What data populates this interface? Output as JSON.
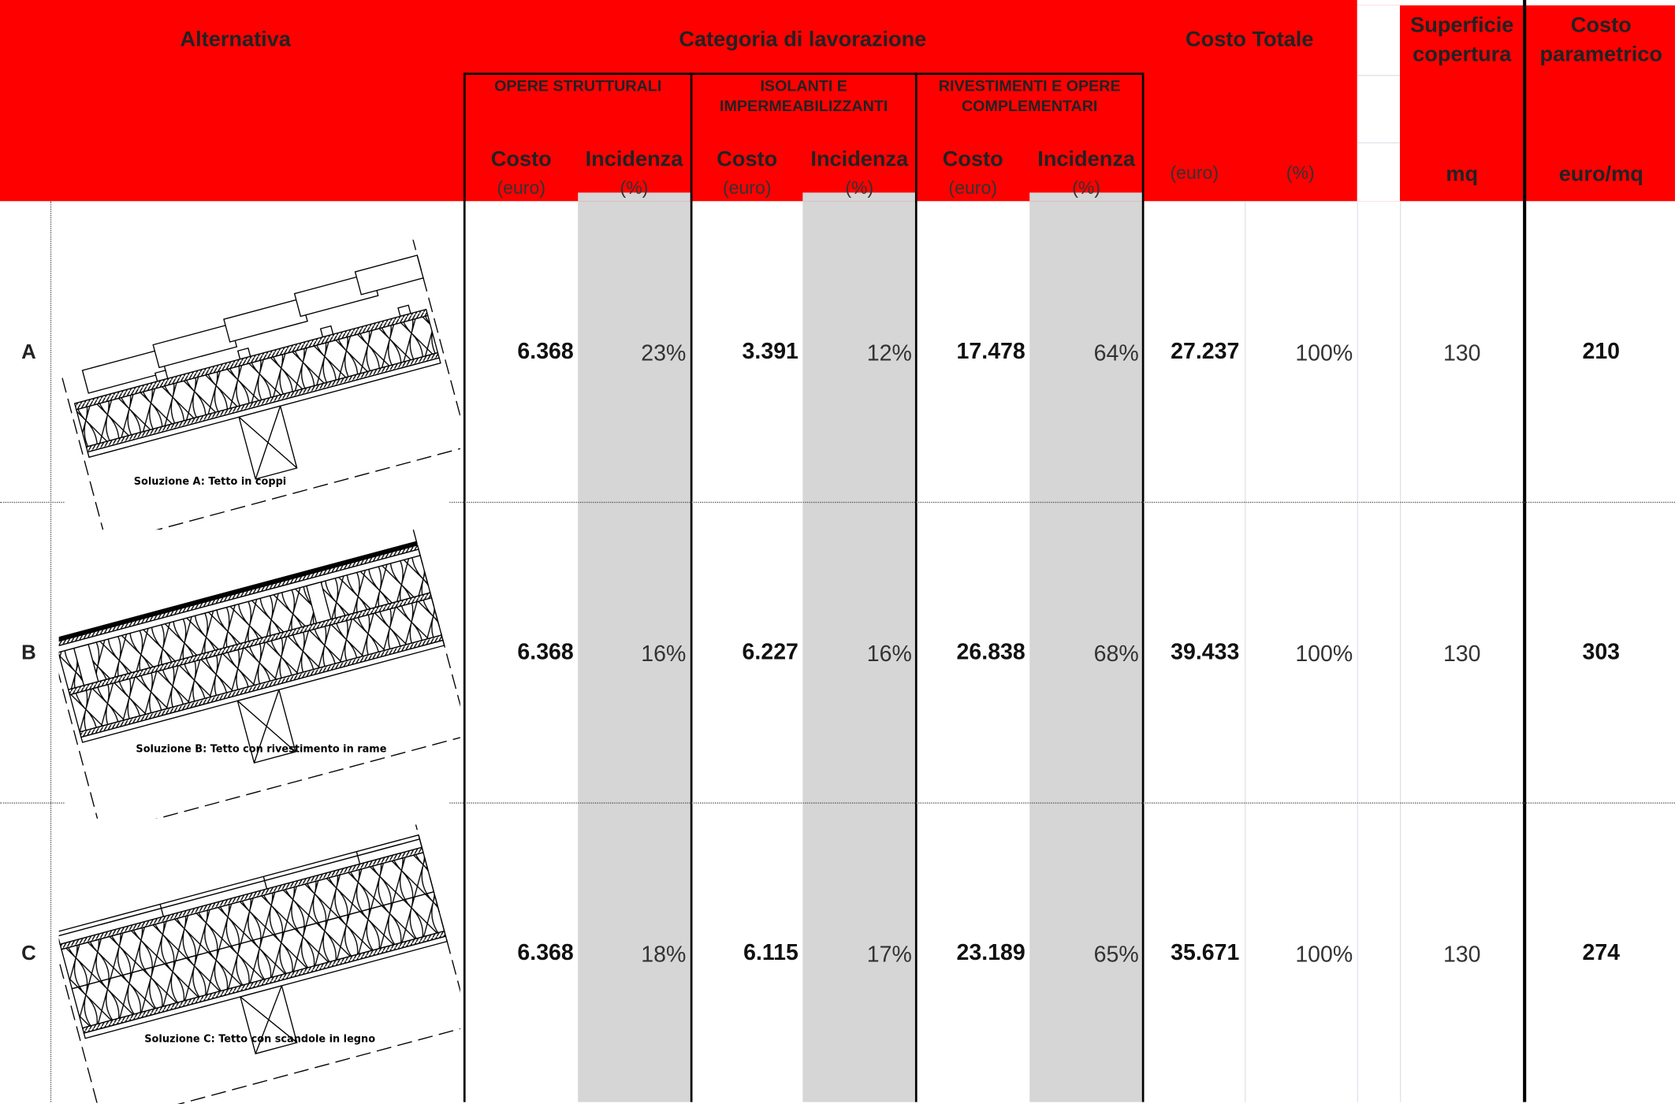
{
  "header": {
    "alternativa": "Alternativa",
    "categoria": "Categoria di lavorazione",
    "costo_totale": "Costo Totale",
    "superficie": [
      "Superficie",
      "copertura"
    ],
    "costo_param": [
      "Costo",
      "parametrico"
    ],
    "groups": [
      {
        "lines": [
          "OPERE STRUTTURALI"
        ]
      },
      {
        "lines": [
          "ISOLANTI E",
          "IMPERMEABILIZZANTI"
        ]
      },
      {
        "lines": [
          "RIVESTIMENTI E OPERE",
          "COMPLEMENTARI"
        ]
      }
    ],
    "col_costo": "Costo",
    "col_incidenza": "Incidenza",
    "unit_euro": "(euro)",
    "unit_pct": "(%)",
    "tot_euro": "(euro)",
    "tot_pct": "(%)",
    "unit_mq": "mq",
    "unit_euromq": "euro/mq"
  },
  "rows": [
    {
      "letter": "A",
      "caption": "Soluzione A: Tetto in coppi",
      "strutturali_costo": "6.368",
      "strutturali_inc": "23%",
      "isolanti_costo": "3.391",
      "isolanti_inc": "12%",
      "rivestimenti_costo": "17.478",
      "rivestimenti_inc": "64%",
      "totale_costo": "27.237",
      "totale_pct": "100%",
      "superficie": "130",
      "parametrico": "210"
    },
    {
      "letter": "B",
      "caption": "Soluzione B: Tetto con rivestimento in rame",
      "strutturali_costo": "6.368",
      "strutturali_inc": "16%",
      "isolanti_costo": "6.227",
      "isolanti_inc": "16%",
      "rivestimenti_costo": "26.838",
      "rivestimenti_inc": "68%",
      "totale_costo": "39.433",
      "totale_pct": "100%",
      "superficie": "130",
      "parametrico": "303"
    },
    {
      "letter": "C",
      "caption": "Soluzione C: Tetto con scandole in legno",
      "strutturali_costo": "6.368",
      "strutturali_inc": "18%",
      "isolanti_costo": "6.115",
      "isolanti_inc": "17%",
      "rivestimenti_costo": "23.189",
      "rivestimenti_inc": "65%",
      "totale_costo": "35.671",
      "totale_pct": "100%",
      "superficie": "130",
      "parametrico": "274"
    }
  ],
  "colors": {
    "header": "#ff0000",
    "incidenza_bg": "#d6d6d6",
    "text": "#222222"
  }
}
